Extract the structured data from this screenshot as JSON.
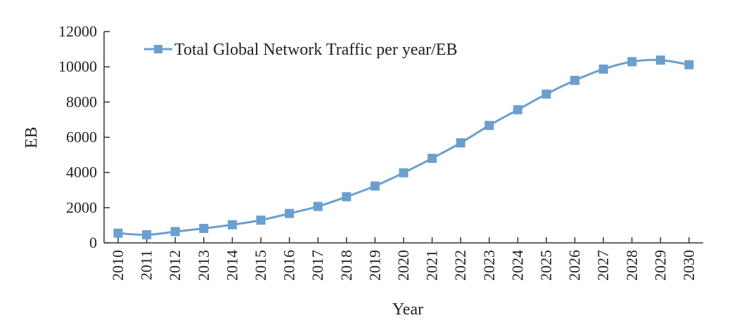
{
  "chart_data": {
    "type": "line",
    "title": "",
    "xlabel": "Year",
    "ylabel": "EB",
    "ylim": [
      0,
      12000
    ],
    "yticks": [
      "0",
      "2000",
      "4000",
      "6000",
      "8000",
      "10000",
      "12000"
    ],
    "x": [
      "2010",
      "2011",
      "2012",
      "2013",
      "2014",
      "2015",
      "2016",
      "2017",
      "2018",
      "2019",
      "2020",
      "2021",
      "2022",
      "2023",
      "2024",
      "2025",
      "2026",
      "2027",
      "2028",
      "2029",
      "2030"
    ],
    "series": [
      {
        "name": "Total Global Network Traffic per year/EB",
        "color": "#6a9fd0",
        "marker": "square",
        "values": [
          550,
          460,
          640,
          820,
          1030,
          1290,
          1670,
          2070,
          2620,
          3230,
          3980,
          4800,
          5680,
          6670,
          7560,
          8450,
          9230,
          9870,
          10290,
          10380,
          10120
        ]
      }
    ],
    "grid": false,
    "legend_position": "top-left"
  }
}
